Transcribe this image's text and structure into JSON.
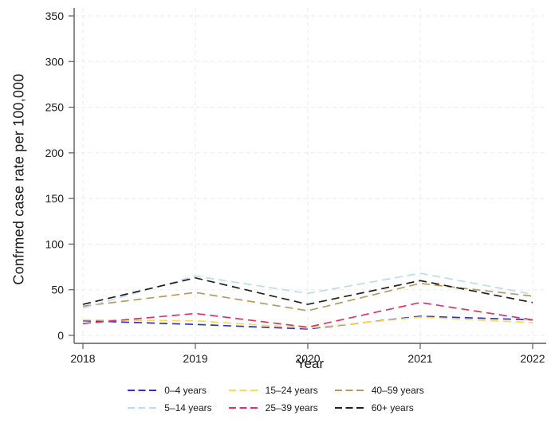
{
  "chart_data": {
    "type": "line",
    "xlabel": "Year",
    "ylabel": "Confrmed case rate per 100,000",
    "x": [
      2018,
      2019,
      2020,
      2021,
      2022
    ],
    "ylim": [
      0,
      350
    ],
    "yticks": [
      0,
      50,
      100,
      150,
      200,
      250,
      300,
      350
    ],
    "grid": true,
    "line_style": "dashed",
    "legend_position": "bottom",
    "legend_columns": 3,
    "axis_color": "#5a5a5a",
    "grid_color": "#ebebeb",
    "text_color": "#1a1a1a",
    "background_color": "#ffffff",
    "series": [
      {
        "name": "0–4 years",
        "color": "#3030d8",
        "values": [
          16,
          12,
          7,
          21,
          17
        ]
      },
      {
        "name": "15–24 years",
        "color": "#fed952",
        "values": [
          17,
          16,
          8,
          20,
          14
        ]
      },
      {
        "name": "40–59 years",
        "color": "#b59b61",
        "values": [
          32,
          47,
          27,
          57,
          43
        ]
      },
      {
        "name": "5–14 years",
        "color": "#bcdcec",
        "values": [
          30,
          65,
          46,
          68,
          45
        ]
      },
      {
        "name": "25–39 years",
        "color": "#dd3468",
        "values": [
          13,
          24,
          9,
          36,
          17
        ]
      },
      {
        "name": "60+ years",
        "color": "#1f1f1f",
        "values": [
          34,
          63,
          34,
          60,
          36
        ]
      }
    ]
  }
}
